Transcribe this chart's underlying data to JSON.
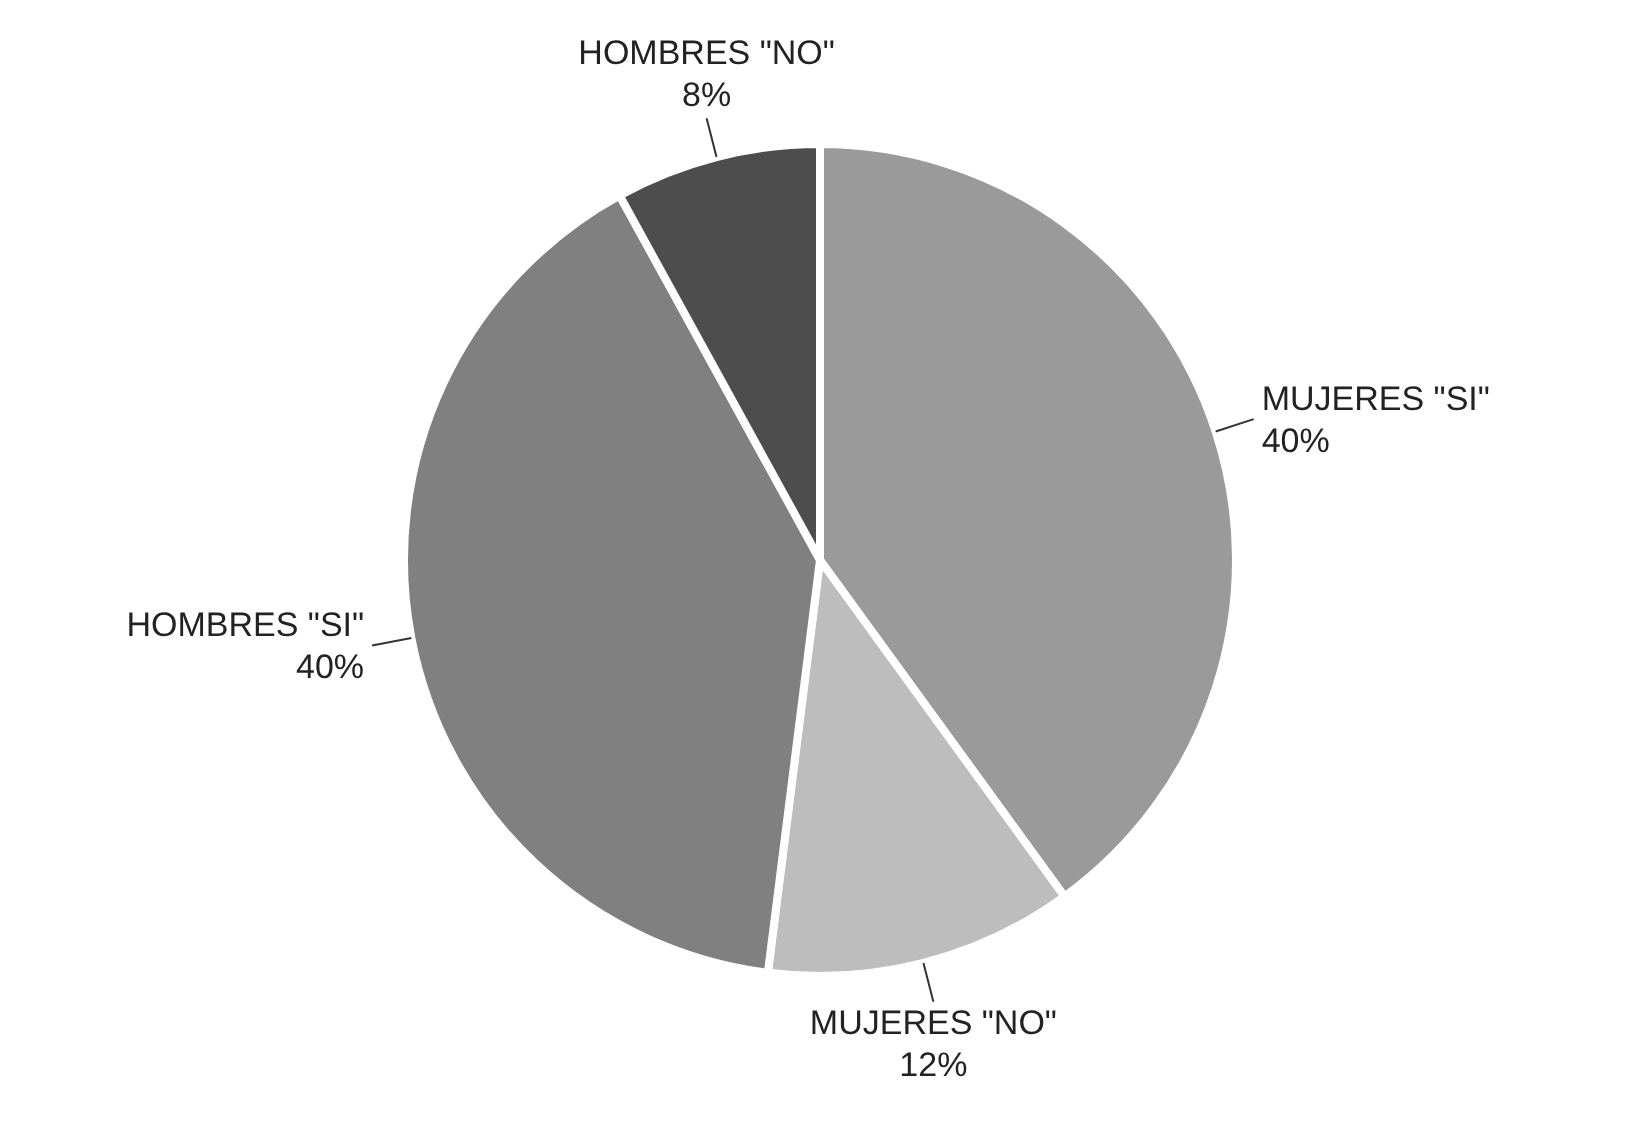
{
  "chart_data": {
    "type": "pie",
    "categories": [
      "MUJERES \"SI\"",
      "MUJERES \"NO\"",
      "HOMBRES \"SI\"",
      "HOMBRES \"NO\""
    ],
    "values": [
      40,
      12,
      40,
      8
    ],
    "value_labels": [
      "40%",
      "12%",
      "40%",
      "8%"
    ],
    "colors": [
      "#9a9a9a",
      "#bdbdbd",
      "#808080",
      "#4d4d4d"
    ],
    "legend": false
  }
}
